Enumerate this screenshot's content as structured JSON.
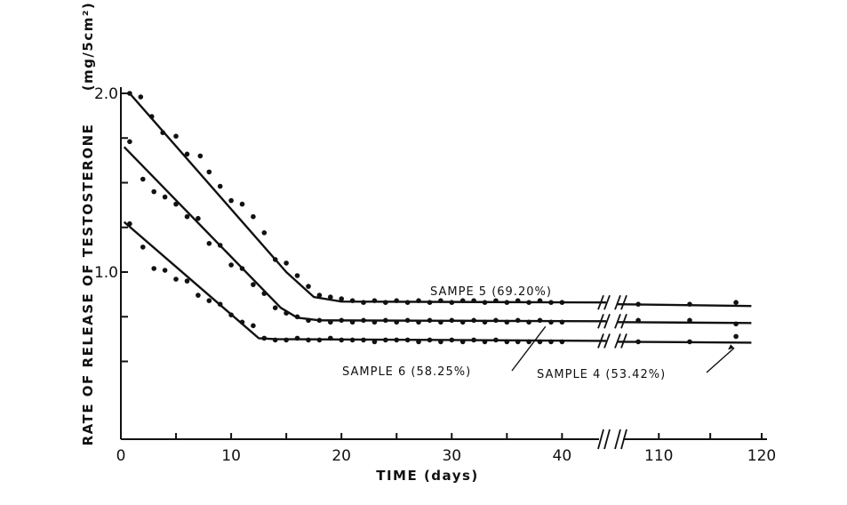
{
  "chart_data": {
    "type": "scatter",
    "title": "",
    "xlabel": "TIME (days)",
    "ylabel": "RATE OF RELEASE OF TESTOSTERONE",
    "ylabel_unit": "(mg/5cm²)",
    "xlim_left": [
      0,
      44
    ],
    "xlim_right": [
      106,
      120
    ],
    "axis_break": true,
    "ylim": [
      0.5,
      2.0
    ],
    "x_ticks_left": [
      "0",
      "10",
      "20",
      "30",
      "40"
    ],
    "x_ticks_right": [
      "110",
      "120"
    ],
    "y_ticks": [
      "1.0",
      "2.0"
    ],
    "grid": false,
    "series": [
      {
        "name": "SAMPE 5 (69.20%)",
        "fit_line": [
          [
            0.8,
            2.0
          ],
          [
            15,
            1.0
          ],
          [
            17.5,
            0.86
          ],
          [
            20,
            0.835
          ],
          [
            44,
            0.83
          ],
          [
            106,
            0.82
          ],
          [
            119,
            0.81
          ]
        ],
        "points": [
          [
            0.8,
            2.0
          ],
          [
            1.8,
            1.98
          ],
          [
            2.8,
            1.87
          ],
          [
            3.8,
            1.78
          ],
          [
            5,
            1.76
          ],
          [
            6,
            1.66
          ],
          [
            7.2,
            1.65
          ],
          [
            8,
            1.56
          ],
          [
            9,
            1.48
          ],
          [
            10,
            1.4
          ],
          [
            11,
            1.38
          ],
          [
            12,
            1.31
          ],
          [
            13,
            1.22
          ],
          [
            14,
            1.07
          ],
          [
            15,
            1.05
          ],
          [
            16,
            0.98
          ],
          [
            17,
            0.92
          ],
          [
            18,
            0.87
          ],
          [
            19,
            0.86
          ],
          [
            20,
            0.85
          ],
          [
            21,
            0.84
          ],
          [
            22,
            0.83
          ],
          [
            23,
            0.84
          ],
          [
            24,
            0.83
          ],
          [
            25,
            0.84
          ],
          [
            26,
            0.83
          ],
          [
            27,
            0.84
          ],
          [
            28,
            0.83
          ],
          [
            29,
            0.84
          ],
          [
            30,
            0.83
          ],
          [
            31,
            0.84
          ],
          [
            32,
            0.84
          ],
          [
            33,
            0.83
          ],
          [
            34,
            0.84
          ],
          [
            35,
            0.83
          ],
          [
            36,
            0.84
          ],
          [
            37,
            0.83
          ],
          [
            38,
            0.84
          ],
          [
            39,
            0.83
          ],
          [
            40,
            0.83
          ],
          [
            108,
            0.82
          ],
          [
            113,
            0.82
          ],
          [
            117.5,
            0.83
          ]
        ]
      },
      {
        "name": "SAMPLE 6 (58.25%)",
        "fit_line": [
          [
            0.3,
            1.7
          ],
          [
            14.5,
            0.8
          ],
          [
            16,
            0.745
          ],
          [
            18,
            0.73
          ],
          [
            44,
            0.725
          ],
          [
            106,
            0.72
          ],
          [
            119,
            0.715
          ]
        ],
        "points": [
          [
            0.8,
            1.73
          ],
          [
            2,
            1.52
          ],
          [
            3,
            1.45
          ],
          [
            4,
            1.42
          ],
          [
            5,
            1.38
          ],
          [
            6,
            1.31
          ],
          [
            7,
            1.3
          ],
          [
            8,
            1.16
          ],
          [
            9,
            1.15
          ],
          [
            10,
            1.04
          ],
          [
            11,
            1.02
          ],
          [
            12,
            0.93
          ],
          [
            13,
            0.88
          ],
          [
            14,
            0.8
          ],
          [
            15,
            0.77
          ],
          [
            16,
            0.75
          ],
          [
            17,
            0.73
          ],
          [
            18,
            0.73
          ],
          [
            19,
            0.72
          ],
          [
            20,
            0.73
          ],
          [
            21,
            0.72
          ],
          [
            22,
            0.73
          ],
          [
            23,
            0.72
          ],
          [
            24,
            0.73
          ],
          [
            25,
            0.72
          ],
          [
            26,
            0.73
          ],
          [
            27,
            0.72
          ],
          [
            28,
            0.73
          ],
          [
            29,
            0.72
          ],
          [
            30,
            0.73
          ],
          [
            31,
            0.72
          ],
          [
            32,
            0.73
          ],
          [
            33,
            0.72
          ],
          [
            34,
            0.73
          ],
          [
            35,
            0.72
          ],
          [
            36,
            0.73
          ],
          [
            37,
            0.72
          ],
          [
            38,
            0.73
          ],
          [
            39,
            0.72
          ],
          [
            40,
            0.72
          ],
          [
            108,
            0.73
          ],
          [
            113,
            0.73
          ],
          [
            117.5,
            0.71
          ]
        ]
      },
      {
        "name": "SAMPLE 4 (53.42%)",
        "fit_line": [
          [
            0.3,
            1.28
          ],
          [
            12.5,
            0.63
          ],
          [
            14,
            0.625
          ],
          [
            44,
            0.615
          ],
          [
            106,
            0.61
          ],
          [
            119,
            0.605
          ]
        ],
        "points": [
          [
            0.8,
            1.27
          ],
          [
            2,
            1.14
          ],
          [
            3,
            1.02
          ],
          [
            4,
            1.01
          ],
          [
            5,
            0.96
          ],
          [
            6,
            0.95
          ],
          [
            7,
            0.87
          ],
          [
            8,
            0.84
          ],
          [
            9,
            0.82
          ],
          [
            10,
            0.76
          ],
          [
            11,
            0.72
          ],
          [
            12,
            0.7
          ],
          [
            13,
            0.63
          ],
          [
            14,
            0.62
          ],
          [
            15,
            0.62
          ],
          [
            16,
            0.63
          ],
          [
            17,
            0.62
          ],
          [
            18,
            0.62
          ],
          [
            19,
            0.63
          ],
          [
            20,
            0.62
          ],
          [
            21,
            0.62
          ],
          [
            22,
            0.62
          ],
          [
            23,
            0.61
          ],
          [
            24,
            0.62
          ],
          [
            25,
            0.62
          ],
          [
            26,
            0.62
          ],
          [
            27,
            0.61
          ],
          [
            28,
            0.62
          ],
          [
            29,
            0.61
          ],
          [
            30,
            0.62
          ],
          [
            31,
            0.61
          ],
          [
            32,
            0.62
          ],
          [
            33,
            0.61
          ],
          [
            34,
            0.62
          ],
          [
            35,
            0.61
          ],
          [
            36,
            0.61
          ],
          [
            37,
            0.61
          ],
          [
            38,
            0.61
          ],
          [
            39,
            0.61
          ],
          [
            40,
            0.61
          ],
          [
            108,
            0.61
          ],
          [
            113,
            0.61
          ],
          [
            117.5,
            0.64
          ]
        ]
      }
    ]
  }
}
